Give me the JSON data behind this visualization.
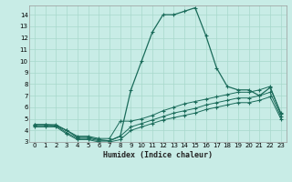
{
  "xlabel": "Humidex (Indice chaleur)",
  "bg_color": "#c8ece6",
  "grid_color": "#a8d8cc",
  "line_color": "#1a6b5a",
  "xlim": [
    -0.5,
    23.5
  ],
  "ylim": [
    3,
    14.8
  ],
  "xticks": [
    0,
    1,
    2,
    3,
    4,
    5,
    6,
    7,
    8,
    9,
    10,
    11,
    12,
    13,
    14,
    15,
    16,
    17,
    18,
    19,
    20,
    21,
    22,
    23
  ],
  "yticks": [
    3,
    4,
    5,
    6,
    7,
    8,
    9,
    10,
    11,
    12,
    13,
    14
  ],
  "curve_peak_x": [
    0,
    1,
    2,
    3,
    4,
    5,
    6,
    7,
    8,
    9,
    10,
    11,
    12,
    13,
    14,
    15,
    16,
    17,
    18,
    19,
    20,
    21,
    22,
    23
  ],
  "curve_peak_y": [
    4.5,
    4.5,
    4.4,
    4.0,
    3.4,
    3.4,
    3.2,
    3.1,
    3.5,
    7.5,
    10.0,
    12.5,
    14.0,
    14.0,
    14.3,
    14.6,
    12.2,
    9.4,
    7.8,
    7.5,
    7.5,
    7.0,
    7.7,
    5.5
  ],
  "curve_top_x": [
    0,
    1,
    2,
    3,
    4,
    5,
    6,
    7,
    8,
    9,
    10,
    11,
    12,
    13,
    14,
    15,
    16,
    17,
    18,
    19,
    20,
    21,
    22,
    23
  ],
  "curve_top_y": [
    4.5,
    4.5,
    4.5,
    4.0,
    3.5,
    3.5,
    3.3,
    3.3,
    4.8,
    4.8,
    5.0,
    5.3,
    5.7,
    6.0,
    6.3,
    6.5,
    6.7,
    6.9,
    7.1,
    7.3,
    7.3,
    7.5,
    7.8,
    5.4
  ],
  "curve_mid_x": [
    0,
    1,
    2,
    3,
    4,
    5,
    6,
    7,
    8,
    9,
    10,
    11,
    12,
    13,
    14,
    15,
    16,
    17,
    18,
    19,
    20,
    21,
    22,
    23
  ],
  "curve_mid_y": [
    4.4,
    4.4,
    4.4,
    3.8,
    3.3,
    3.3,
    3.1,
    3.1,
    3.5,
    4.3,
    4.6,
    4.9,
    5.2,
    5.5,
    5.7,
    5.9,
    6.2,
    6.4,
    6.6,
    6.8,
    6.8,
    7.0,
    7.3,
    5.2
  ],
  "curve_bot_x": [
    0,
    1,
    2,
    3,
    4,
    5,
    6,
    7,
    8,
    9,
    10,
    11,
    12,
    13,
    14,
    15,
    16,
    17,
    18,
    19,
    20,
    21,
    22,
    23
  ],
  "curve_bot_y": [
    4.3,
    4.3,
    4.3,
    3.7,
    3.2,
    3.2,
    3.0,
    3.0,
    3.2,
    4.0,
    4.3,
    4.6,
    4.9,
    5.1,
    5.3,
    5.5,
    5.8,
    6.0,
    6.2,
    6.4,
    6.4,
    6.6,
    6.9,
    5.0
  ]
}
